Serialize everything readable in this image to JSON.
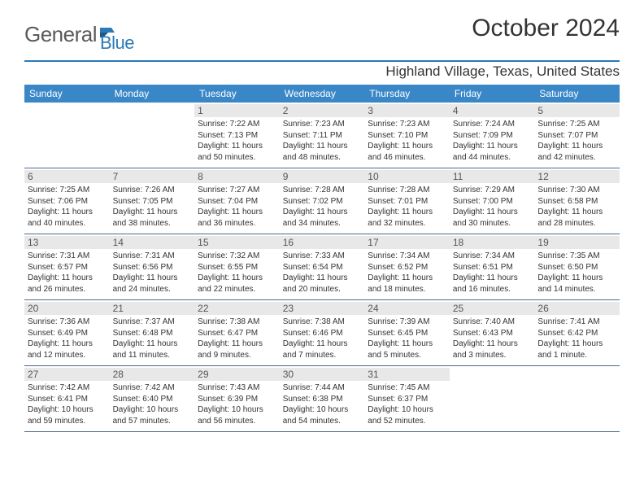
{
  "logo": {
    "text1": "General",
    "text2": "Blue"
  },
  "title": "October 2024",
  "location": "Highland Village, Texas, United States",
  "colors": {
    "header_bg": "#3a87c7",
    "header_text": "#ffffff",
    "accent_line": "#2a7ab8",
    "daynum_bg": "#e8e8e8",
    "row_border": "#4a6a88",
    "text": "#333333"
  },
  "day_headers": [
    "Sunday",
    "Monday",
    "Tuesday",
    "Wednesday",
    "Thursday",
    "Friday",
    "Saturday"
  ],
  "cells": [
    {
      "n": "",
      "sr": "",
      "ss": "",
      "dl": ""
    },
    {
      "n": "",
      "sr": "",
      "ss": "",
      "dl": ""
    },
    {
      "n": "1",
      "sr": "Sunrise: 7:22 AM",
      "ss": "Sunset: 7:13 PM",
      "dl": "Daylight: 11 hours and 50 minutes."
    },
    {
      "n": "2",
      "sr": "Sunrise: 7:23 AM",
      "ss": "Sunset: 7:11 PM",
      "dl": "Daylight: 11 hours and 48 minutes."
    },
    {
      "n": "3",
      "sr": "Sunrise: 7:23 AM",
      "ss": "Sunset: 7:10 PM",
      "dl": "Daylight: 11 hours and 46 minutes."
    },
    {
      "n": "4",
      "sr": "Sunrise: 7:24 AM",
      "ss": "Sunset: 7:09 PM",
      "dl": "Daylight: 11 hours and 44 minutes."
    },
    {
      "n": "5",
      "sr": "Sunrise: 7:25 AM",
      "ss": "Sunset: 7:07 PM",
      "dl": "Daylight: 11 hours and 42 minutes."
    },
    {
      "n": "6",
      "sr": "Sunrise: 7:25 AM",
      "ss": "Sunset: 7:06 PM",
      "dl": "Daylight: 11 hours and 40 minutes."
    },
    {
      "n": "7",
      "sr": "Sunrise: 7:26 AM",
      "ss": "Sunset: 7:05 PM",
      "dl": "Daylight: 11 hours and 38 minutes."
    },
    {
      "n": "8",
      "sr": "Sunrise: 7:27 AM",
      "ss": "Sunset: 7:04 PM",
      "dl": "Daylight: 11 hours and 36 minutes."
    },
    {
      "n": "9",
      "sr": "Sunrise: 7:28 AM",
      "ss": "Sunset: 7:02 PM",
      "dl": "Daylight: 11 hours and 34 minutes."
    },
    {
      "n": "10",
      "sr": "Sunrise: 7:28 AM",
      "ss": "Sunset: 7:01 PM",
      "dl": "Daylight: 11 hours and 32 minutes."
    },
    {
      "n": "11",
      "sr": "Sunrise: 7:29 AM",
      "ss": "Sunset: 7:00 PM",
      "dl": "Daylight: 11 hours and 30 minutes."
    },
    {
      "n": "12",
      "sr": "Sunrise: 7:30 AM",
      "ss": "Sunset: 6:58 PM",
      "dl": "Daylight: 11 hours and 28 minutes."
    },
    {
      "n": "13",
      "sr": "Sunrise: 7:31 AM",
      "ss": "Sunset: 6:57 PM",
      "dl": "Daylight: 11 hours and 26 minutes."
    },
    {
      "n": "14",
      "sr": "Sunrise: 7:31 AM",
      "ss": "Sunset: 6:56 PM",
      "dl": "Daylight: 11 hours and 24 minutes."
    },
    {
      "n": "15",
      "sr": "Sunrise: 7:32 AM",
      "ss": "Sunset: 6:55 PM",
      "dl": "Daylight: 11 hours and 22 minutes."
    },
    {
      "n": "16",
      "sr": "Sunrise: 7:33 AM",
      "ss": "Sunset: 6:54 PM",
      "dl": "Daylight: 11 hours and 20 minutes."
    },
    {
      "n": "17",
      "sr": "Sunrise: 7:34 AM",
      "ss": "Sunset: 6:52 PM",
      "dl": "Daylight: 11 hours and 18 minutes."
    },
    {
      "n": "18",
      "sr": "Sunrise: 7:34 AM",
      "ss": "Sunset: 6:51 PM",
      "dl": "Daylight: 11 hours and 16 minutes."
    },
    {
      "n": "19",
      "sr": "Sunrise: 7:35 AM",
      "ss": "Sunset: 6:50 PM",
      "dl": "Daylight: 11 hours and 14 minutes."
    },
    {
      "n": "20",
      "sr": "Sunrise: 7:36 AM",
      "ss": "Sunset: 6:49 PM",
      "dl": "Daylight: 11 hours and 12 minutes."
    },
    {
      "n": "21",
      "sr": "Sunrise: 7:37 AM",
      "ss": "Sunset: 6:48 PM",
      "dl": "Daylight: 11 hours and 11 minutes."
    },
    {
      "n": "22",
      "sr": "Sunrise: 7:38 AM",
      "ss": "Sunset: 6:47 PM",
      "dl": "Daylight: 11 hours and 9 minutes."
    },
    {
      "n": "23",
      "sr": "Sunrise: 7:38 AM",
      "ss": "Sunset: 6:46 PM",
      "dl": "Daylight: 11 hours and 7 minutes."
    },
    {
      "n": "24",
      "sr": "Sunrise: 7:39 AM",
      "ss": "Sunset: 6:45 PM",
      "dl": "Daylight: 11 hours and 5 minutes."
    },
    {
      "n": "25",
      "sr": "Sunrise: 7:40 AM",
      "ss": "Sunset: 6:43 PM",
      "dl": "Daylight: 11 hours and 3 minutes."
    },
    {
      "n": "26",
      "sr": "Sunrise: 7:41 AM",
      "ss": "Sunset: 6:42 PM",
      "dl": "Daylight: 11 hours and 1 minute."
    },
    {
      "n": "27",
      "sr": "Sunrise: 7:42 AM",
      "ss": "Sunset: 6:41 PM",
      "dl": "Daylight: 10 hours and 59 minutes."
    },
    {
      "n": "28",
      "sr": "Sunrise: 7:42 AM",
      "ss": "Sunset: 6:40 PM",
      "dl": "Daylight: 10 hours and 57 minutes."
    },
    {
      "n": "29",
      "sr": "Sunrise: 7:43 AM",
      "ss": "Sunset: 6:39 PM",
      "dl": "Daylight: 10 hours and 56 minutes."
    },
    {
      "n": "30",
      "sr": "Sunrise: 7:44 AM",
      "ss": "Sunset: 6:38 PM",
      "dl": "Daylight: 10 hours and 54 minutes."
    },
    {
      "n": "31",
      "sr": "Sunrise: 7:45 AM",
      "ss": "Sunset: 6:37 PM",
      "dl": "Daylight: 10 hours and 52 minutes."
    },
    {
      "n": "",
      "sr": "",
      "ss": "",
      "dl": ""
    },
    {
      "n": "",
      "sr": "",
      "ss": "",
      "dl": ""
    }
  ]
}
